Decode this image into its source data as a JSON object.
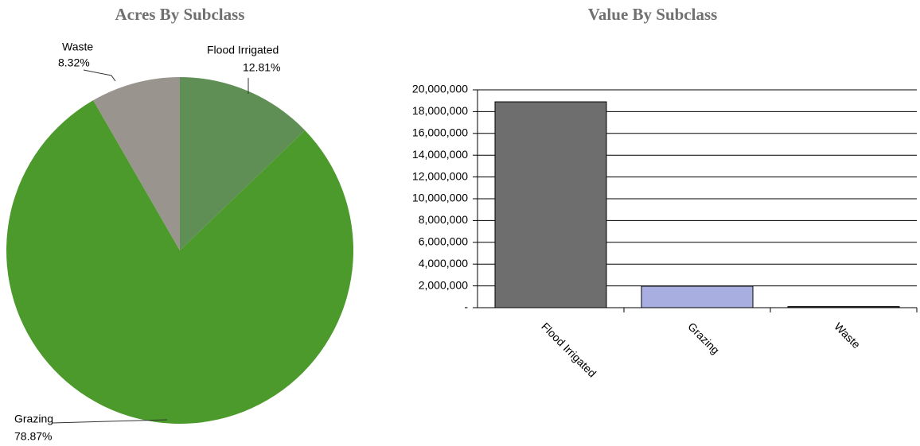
{
  "chart_data": [
    {
      "type": "pie",
      "title": "Acres By Subclass",
      "categories": [
        "Flood Irrigated",
        "Grazing",
        "Waste"
      ],
      "values": [
        12.81,
        78.87,
        8.32
      ],
      "value_labels": [
        "12.81%",
        "78.87%",
        "8.32%"
      ],
      "colors": [
        "#5f8f55",
        "#4c9a2c",
        "#9a948f"
      ]
    },
    {
      "type": "bar",
      "title": "Value By Subclass",
      "categories": [
        "Flood Irrigated",
        "Grazing",
        "Waste"
      ],
      "values": [
        18900000,
        1970000,
        100000
      ],
      "colors": [
        "#6e6e6e",
        "#a9aee0",
        "#3a3a3a"
      ],
      "ylim": [
        0,
        20000000
      ],
      "yticks": [
        {
          "value": 0,
          "label": "-"
        },
        {
          "value": 2000000,
          "label": "2,000,000"
        },
        {
          "value": 4000000,
          "label": "4,000,000"
        },
        {
          "value": 6000000,
          "label": "6,000,000"
        },
        {
          "value": 8000000,
          "label": "8,000,000"
        },
        {
          "value": 10000000,
          "label": "10,000,000"
        },
        {
          "value": 12000000,
          "label": "12,000,000"
        },
        {
          "value": 14000000,
          "label": "14,000,000"
        },
        {
          "value": 16000000,
          "label": "16,000,000"
        },
        {
          "value": 18000000,
          "label": "18,000,000"
        },
        {
          "value": 20000000,
          "label": "20,000,000"
        }
      ],
      "grid": true
    }
  ]
}
